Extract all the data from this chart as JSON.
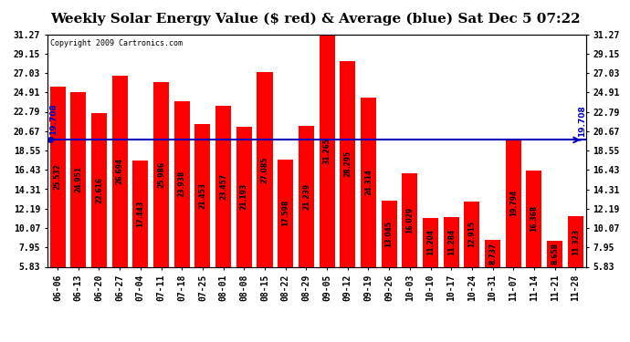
{
  "title": "Weekly Solar Energy Value ($ red) & Average (blue) Sat Dec 5 07:22",
  "copyright": "Copyright 2009 Cartronics.com",
  "average": 19.708,
  "average_label": "19.708",
  "bar_color": "#ff0000",
  "average_color": "#0000bb",
  "background_color": "#ffffff",
  "plot_bg_color": "#ffffff",
  "grid_color": "#aaaaaa",
  "categories": [
    "06-06",
    "06-13",
    "06-20",
    "06-27",
    "07-04",
    "07-11",
    "07-18",
    "07-25",
    "08-01",
    "08-08",
    "08-15",
    "08-22",
    "08-29",
    "09-05",
    "09-12",
    "09-19",
    "09-26",
    "10-03",
    "10-10",
    "10-17",
    "10-24",
    "10-31",
    "11-07",
    "11-14",
    "11-21",
    "11-28"
  ],
  "values": [
    25.532,
    24.951,
    22.616,
    26.694,
    17.443,
    25.986,
    23.938,
    21.453,
    23.457,
    21.193,
    27.085,
    17.598,
    21.239,
    31.265,
    28.295,
    24.314,
    13.045,
    16.029,
    11.204,
    11.284,
    12.915,
    8.737,
    19.794,
    16.368,
    8.658,
    11.323
  ],
  "ylim_min": 5.83,
  "ylim_max": 31.27,
  "yticks": [
    5.83,
    7.95,
    10.07,
    12.19,
    14.31,
    16.43,
    18.55,
    20.67,
    22.79,
    24.91,
    27.03,
    29.15,
    31.27
  ],
  "title_fontsize": 11,
  "tick_fontsize": 7,
  "bar_label_fontsize": 5.5,
  "copyright_fontsize": 6
}
